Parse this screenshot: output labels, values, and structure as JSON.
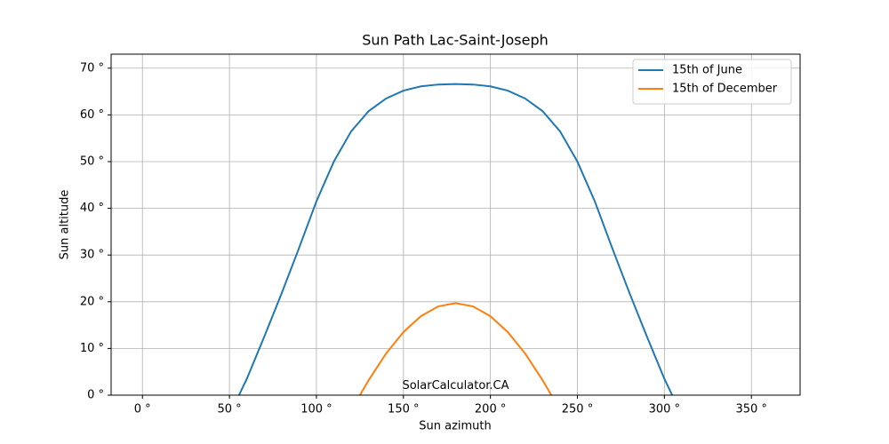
{
  "chart_data": {
    "type": "line",
    "title": "Sun Path Lac-Saint-Joseph",
    "xlabel": "Sun azimuth",
    "ylabel": "Sun altitude",
    "annotation": {
      "text": "SolarCalculator.CA",
      "x": 180,
      "y": 2
    },
    "series": [
      {
        "name": "15th of June",
        "color": "#1f77b4",
        "x": [
          55.5,
          60,
          70,
          80,
          90,
          100,
          110,
          120,
          130,
          140,
          150,
          160,
          170,
          180,
          190,
          200,
          210,
          220,
          230,
          240,
          250,
          260,
          270,
          280,
          290,
          300,
          304.5
        ],
        "values": [
          0,
          3.5,
          12.5,
          21.8,
          31.5,
          41.5,
          50,
          56.5,
          60.8,
          63.5,
          65.2,
          66.1,
          66.5,
          66.6,
          66.5,
          66.1,
          65.2,
          63.5,
          60.8,
          56.5,
          50,
          41.5,
          31.5,
          21.8,
          12.5,
          3.5,
          0
        ]
      },
      {
        "name": "15th of December",
        "color": "#ff7f0e",
        "x": [
          125,
          130,
          140,
          150,
          160,
          170,
          180,
          190,
          200,
          210,
          220,
          230,
          235
        ],
        "values": [
          0,
          3.2,
          8.9,
          13.5,
          16.9,
          19,
          19.7,
          19,
          16.9,
          13.5,
          8.9,
          3.2,
          0
        ]
      }
    ],
    "xlim": [
      -18,
      378
    ],
    "ylim": [
      0,
      73
    ],
    "xticks": [
      {
        "value": 0,
        "label": "0 °"
      },
      {
        "value": 50,
        "label": "50 °"
      },
      {
        "value": 100,
        "label": "100 °"
      },
      {
        "value": 150,
        "label": "150 °"
      },
      {
        "value": 200,
        "label": "200 °"
      },
      {
        "value": 250,
        "label": "250 °"
      },
      {
        "value": 300,
        "label": "300 °"
      },
      {
        "value": 350,
        "label": "350 °"
      }
    ],
    "yticks": [
      {
        "value": 0,
        "label": "0 °"
      },
      {
        "value": 10,
        "label": "10 °"
      },
      {
        "value": 20,
        "label": "20 °"
      },
      {
        "value": 30,
        "label": "30 °"
      },
      {
        "value": 40,
        "label": "40 °"
      },
      {
        "value": 50,
        "label": "50 °"
      },
      {
        "value": 60,
        "label": "60 °"
      },
      {
        "value": 70,
        "label": "70 °"
      }
    ],
    "grid": true,
    "legend": "upper-right"
  }
}
